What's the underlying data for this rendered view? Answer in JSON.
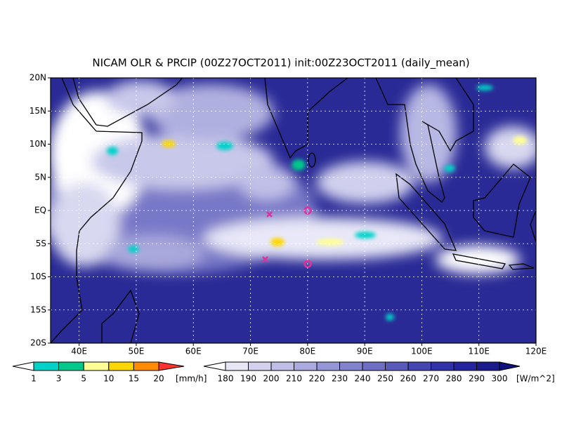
{
  "header": {
    "title": "NICAM OLR & PRCIP (00Z27OCT2011) init:00Z23OCT2011 (daily_mean)"
  },
  "map": {
    "lon_range": [
      35,
      120
    ],
    "lat_range": [
      -20,
      20
    ],
    "lat_ticks": [
      {
        "value": 20,
        "label": "20N"
      },
      {
        "value": 15,
        "label": "15N"
      },
      {
        "value": 10,
        "label": "10N"
      },
      {
        "value": 5,
        "label": "5N"
      },
      {
        "value": 0,
        "label": "EQ"
      },
      {
        "value": -5,
        "label": "5S"
      },
      {
        "value": -10,
        "label": "10S"
      },
      {
        "value": -15,
        "label": "15S"
      },
      {
        "value": -20,
        "label": "20S"
      }
    ],
    "lon_ticks": [
      {
        "value": 40,
        "label": "40E"
      },
      {
        "value": 50,
        "label": "50E"
      },
      {
        "value": 60,
        "label": "60E"
      },
      {
        "value": 70,
        "label": "70E"
      },
      {
        "value": 80,
        "label": "80E"
      },
      {
        "value": 90,
        "label": "90E"
      },
      {
        "value": 100,
        "label": "100E"
      },
      {
        "value": 110,
        "label": "110E"
      },
      {
        "value": 120,
        "label": "120E"
      }
    ]
  },
  "colorbars": [
    {
      "levels": [
        1,
        3,
        5,
        10,
        15,
        20
      ],
      "unit": "[mm/h]",
      "colors": [
        "#ffffff",
        "#00d2c8",
        "#00c88c",
        "#ffff96",
        "#ffd700",
        "#ff8c00",
        "#ff3232"
      ]
    },
    {
      "levels": [
        180,
        190,
        200,
        210,
        220,
        230,
        240,
        250,
        260,
        270,
        280,
        290,
        300
      ],
      "unit": "[W/m^2]",
      "colors": [
        "#ffffff",
        "#e6e6f5",
        "#d2d2ee",
        "#bebee6",
        "#aaaade",
        "#9696d6",
        "#8282cd",
        "#6e6ec4",
        "#5a5abb",
        "#4646b2",
        "#3232a8",
        "#24249e",
        "#1a1a8c",
        "#10107a"
      ]
    }
  ]
}
